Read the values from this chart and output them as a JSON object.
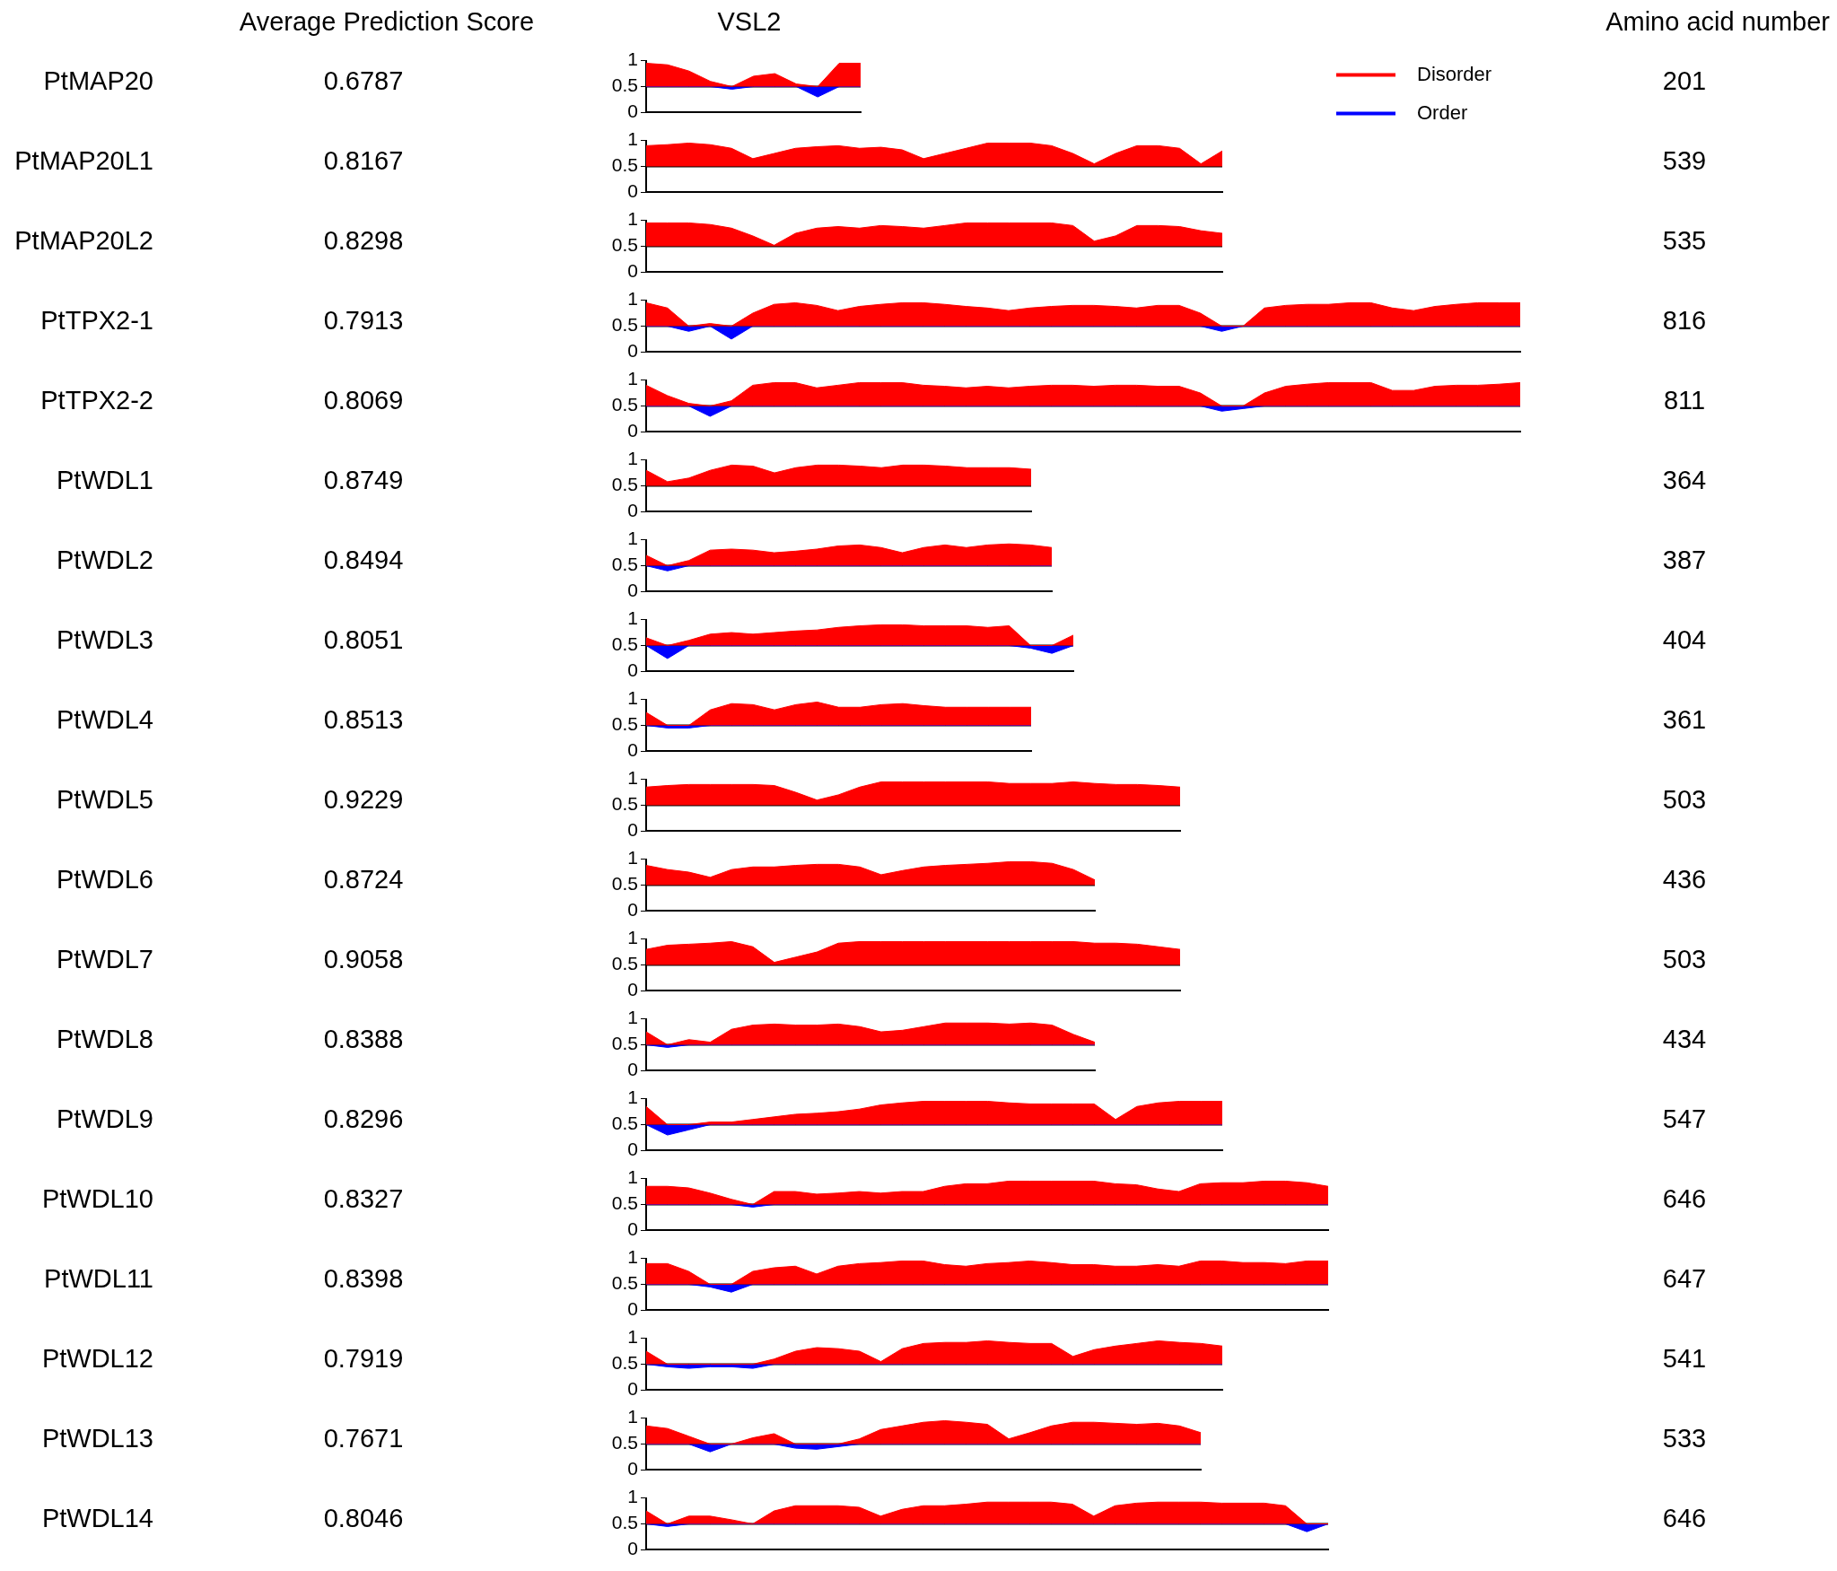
{
  "chart_data": [
    {
      "type": "other",
      "annotations": [
        "Average Prediction Score",
        "VSL2",
        "Amino acid number"
      ]
    },
    {
      "type": "area",
      "ylabel": "PtMAP20",
      "annotations": [
        "0.6787",
        "201"
      ],
      "legend": "right",
      "ylim": [
        0,
        1
      ],
      "yticks": [
        0,
        0.5,
        1
      ],
      "tick_labels": "y",
      "ref_lines": [
        {
          "axis": "y",
          "value": 0.5,
          "color": "#000000"
        }
      ],
      "categories": [
        null,
        null,
        null,
        null,
        null,
        null,
        null,
        null,
        null,
        null,
        null
      ],
      "series": [
        {
          "name": "Disorder",
          "color": "#ff0000",
          "values": [
            0.95,
            0.92,
            0.8,
            0.6,
            0.5,
            0.7,
            0.75,
            0.55,
            0.5,
            0.95,
            0.95
          ]
        },
        {
          "name": "Order",
          "color": "#0000ff",
          "values": [
            0.5,
            0.5,
            0.5,
            0.5,
            0.45,
            0.5,
            0.5,
            0.5,
            0.3,
            0.5,
            0.5
          ]
        }
      ]
    },
    {
      "type": "area",
      "ylabel": "PtMAP20L1",
      "annotations": [
        "0.8167",
        "539"
      ],
      "ylim": [
        0,
        1
      ],
      "yticks": [
        0,
        0.5,
        1
      ],
      "tick_labels": "y",
      "ref_lines": [
        {
          "axis": "y",
          "value": 0.5,
          "color": "#000000"
        }
      ],
      "categories": [
        null,
        null,
        null,
        null,
        null,
        null,
        null,
        null,
        null,
        null,
        null,
        null,
        null,
        null,
        null,
        null,
        null,
        null,
        null,
        null,
        null,
        null,
        null,
        null,
        null,
        null,
        null,
        null
      ],
      "series": [
        {
          "color": "#ff0000",
          "values": [
            0.9,
            0.92,
            0.95,
            0.92,
            0.85,
            0.65,
            0.75,
            0.85,
            0.88,
            0.9,
            0.85,
            0.87,
            0.82,
            0.65,
            0.75,
            0.85,
            0.95,
            0.95,
            0.95,
            0.9,
            0.75,
            0.55,
            0.75,
            0.9,
            0.9,
            0.85,
            0.55,
            0.8
          ]
        }
      ]
    },
    {
      "type": "area",
      "ylabel": "PtMAP20L2",
      "annotations": [
        "0.8298",
        "535"
      ],
      "ylim": [
        0,
        1
      ],
      "yticks": [
        0,
        0.5,
        1
      ],
      "tick_labels": "y",
      "ref_lines": [
        {
          "axis": "y",
          "value": 0.5,
          "color": "#000000"
        }
      ],
      "categories": [
        null,
        null,
        null,
        null,
        null,
        null,
        null,
        null,
        null,
        null,
        null,
        null,
        null,
        null,
        null,
        null,
        null,
        null,
        null,
        null,
        null,
        null,
        null,
        null,
        null,
        null,
        null,
        null
      ],
      "series": [
        {
          "color": "#ff0000",
          "values": [
            0.95,
            0.95,
            0.95,
            0.92,
            0.85,
            0.7,
            0.52,
            0.75,
            0.85,
            0.88,
            0.85,
            0.9,
            0.88,
            0.85,
            0.9,
            0.95,
            0.95,
            0.95,
            0.95,
            0.95,
            0.9,
            0.6,
            0.7,
            0.9,
            0.9,
            0.88,
            0.8,
            0.75
          ]
        }
      ]
    },
    {
      "type": "area",
      "ylabel": "PtTPX2-1",
      "annotations": [
        "0.7913",
        "816"
      ],
      "ylim": [
        0,
        1
      ],
      "yticks": [
        0,
        0.5,
        1
      ],
      "tick_labels": "y",
      "ref_lines": [
        {
          "axis": "y",
          "value": 0.5,
          "color": "#000000"
        }
      ],
      "categories": [
        null,
        null,
        null,
        null,
        null,
        null,
        null,
        null,
        null,
        null,
        null,
        null,
        null,
        null,
        null,
        null,
        null,
        null,
        null,
        null,
        null,
        null,
        null,
        null,
        null,
        null,
        null,
        null,
        null,
        null,
        null,
        null,
        null,
        null,
        null,
        null,
        null,
        null,
        null,
        null,
        null,
        null
      ],
      "series": [
        {
          "color": "#ff0000",
          "values": [
            0.95,
            0.85,
            0.5,
            0.55,
            0.5,
            0.75,
            0.92,
            0.95,
            0.9,
            0.8,
            0.88,
            0.92,
            0.95,
            0.95,
            0.92,
            0.88,
            0.85,
            0.8,
            0.85,
            0.88,
            0.9,
            0.9,
            0.88,
            0.85,
            0.9,
            0.9,
            0.75,
            0.5,
            0.5,
            0.85,
            0.9,
            0.92,
            0.92,
            0.95,
            0.95,
            0.85,
            0.8,
            0.88,
            0.92,
            0.95,
            0.95,
            0.95
          ]
        },
        {
          "color": "#0000ff",
          "values": [
            0.5,
            0.5,
            0.4,
            0.5,
            0.25,
            0.5,
            0.5,
            0.5,
            0.5,
            0.5,
            0.5,
            0.5,
            0.5,
            0.5,
            0.5,
            0.5,
            0.5,
            0.5,
            0.5,
            0.5,
            0.5,
            0.5,
            0.5,
            0.5,
            0.5,
            0.5,
            0.5,
            0.4,
            0.5,
            0.5,
            0.5,
            0.5,
            0.5,
            0.5,
            0.5,
            0.5,
            0.5,
            0.5,
            0.5,
            0.5,
            0.5,
            0.5
          ]
        }
      ]
    },
    {
      "type": "area",
      "ylabel": "PtTPX2-2",
      "annotations": [
        "0.8069",
        "811"
      ],
      "ylim": [
        0,
        1
      ],
      "yticks": [
        0,
        0.5,
        1
      ],
      "tick_labels": "y",
      "ref_lines": [
        {
          "axis": "y",
          "value": 0.5,
          "color": "#000000"
        }
      ],
      "categories": [
        null,
        null,
        null,
        null,
        null,
        null,
        null,
        null,
        null,
        null,
        null,
        null,
        null,
        null,
        null,
        null,
        null,
        null,
        null,
        null,
        null,
        null,
        null,
        null,
        null,
        null,
        null,
        null,
        null,
        null,
        null,
        null,
        null,
        null,
        null,
        null,
        null,
        null,
        null,
        null,
        null,
        null
      ],
      "series": [
        {
          "color": "#ff0000",
          "values": [
            0.9,
            0.7,
            0.55,
            0.5,
            0.6,
            0.9,
            0.95,
            0.95,
            0.85,
            0.9,
            0.95,
            0.95,
            0.95,
            0.9,
            0.88,
            0.85,
            0.88,
            0.85,
            0.88,
            0.9,
            0.9,
            0.88,
            0.9,
            0.9,
            0.88,
            0.88,
            0.75,
            0.5,
            0.5,
            0.75,
            0.88,
            0.92,
            0.95,
            0.95,
            0.95,
            0.8,
            0.8,
            0.88,
            0.9,
            0.9,
            0.92,
            0.95
          ]
        },
        {
          "color": "#0000ff",
          "values": [
            0.5,
            0.5,
            0.5,
            0.3,
            0.5,
            0.5,
            0.5,
            0.5,
            0.5,
            0.5,
            0.5,
            0.5,
            0.5,
            0.5,
            0.5,
            0.5,
            0.5,
            0.5,
            0.5,
            0.5,
            0.5,
            0.5,
            0.5,
            0.5,
            0.5,
            0.5,
            0.5,
            0.4,
            0.45,
            0.5,
            0.5,
            0.5,
            0.5,
            0.5,
            0.5,
            0.5,
            0.5,
            0.5,
            0.5,
            0.5,
            0.5,
            0.5
          ]
        }
      ]
    },
    {
      "type": "area",
      "ylabel": "PtWDL1",
      "annotations": [
        "0.8749",
        "364"
      ],
      "ylim": [
        0,
        1
      ],
      "yticks": [
        0,
        0.5,
        1
      ],
      "tick_labels": "y",
      "ref_lines": [
        {
          "axis": "y",
          "value": 0.5,
          "color": "#000000"
        }
      ],
      "categories": [
        null,
        null,
        null,
        null,
        null,
        null,
        null,
        null,
        null,
        null,
        null,
        null,
        null,
        null,
        null,
        null,
        null,
        null,
        null
      ],
      "series": [
        {
          "color": "#ff0000",
          "values": [
            0.8,
            0.58,
            0.65,
            0.8,
            0.9,
            0.88,
            0.75,
            0.85,
            0.9,
            0.9,
            0.88,
            0.85,
            0.9,
            0.9,
            0.88,
            0.85,
            0.85,
            0.85,
            0.82
          ]
        }
      ]
    },
    {
      "type": "area",
      "ylabel": "PtWDL2",
      "annotations": [
        "0.8494",
        "387"
      ],
      "ylim": [
        0,
        1
      ],
      "yticks": [
        0,
        0.5,
        1
      ],
      "tick_labels": "y",
      "ref_lines": [
        {
          "axis": "y",
          "value": 0.5,
          "color": "#000000"
        }
      ],
      "categories": [
        null,
        null,
        null,
        null,
        null,
        null,
        null,
        null,
        null,
        null,
        null,
        null,
        null,
        null,
        null,
        null,
        null,
        null,
        null,
        null
      ],
      "series": [
        {
          "color": "#ff0000",
          "values": [
            0.7,
            0.5,
            0.6,
            0.8,
            0.82,
            0.8,
            0.75,
            0.78,
            0.82,
            0.88,
            0.9,
            0.85,
            0.75,
            0.85,
            0.9,
            0.85,
            0.9,
            0.92,
            0.9,
            0.85
          ]
        },
        {
          "color": "#0000ff",
          "values": [
            0.5,
            0.4,
            0.5,
            0.5,
            0.5,
            0.5,
            0.5,
            0.5,
            0.5,
            0.5,
            0.5,
            0.5,
            0.5,
            0.5,
            0.5,
            0.5,
            0.5,
            0.5,
            0.5,
            0.5
          ]
        }
      ]
    },
    {
      "type": "area",
      "ylabel": "PtWDL3",
      "annotations": [
        "0.8051",
        "404"
      ],
      "ylim": [
        0,
        1
      ],
      "yticks": [
        0,
        0.5,
        1
      ],
      "tick_labels": "y",
      "ref_lines": [
        {
          "axis": "y",
          "value": 0.5,
          "color": "#000000"
        }
      ],
      "categories": [
        null,
        null,
        null,
        null,
        null,
        null,
        null,
        null,
        null,
        null,
        null,
        null,
        null,
        null,
        null,
        null,
        null,
        null,
        null,
        null,
        null
      ],
      "series": [
        {
          "color": "#ff0000",
          "values": [
            0.65,
            0.5,
            0.6,
            0.72,
            0.75,
            0.72,
            0.75,
            0.78,
            0.8,
            0.85,
            0.88,
            0.9,
            0.9,
            0.88,
            0.88,
            0.88,
            0.85,
            0.88,
            0.5,
            0.5,
            0.7
          ]
        },
        {
          "color": "#0000ff",
          "values": [
            0.5,
            0.25,
            0.5,
            0.5,
            0.5,
            0.5,
            0.5,
            0.5,
            0.5,
            0.5,
            0.5,
            0.5,
            0.5,
            0.5,
            0.5,
            0.5,
            0.5,
            0.5,
            0.45,
            0.35,
            0.5
          ]
        }
      ]
    },
    {
      "type": "area",
      "ylabel": "PtWDL4",
      "annotations": [
        "0.8513",
        "361"
      ],
      "ylim": [
        0,
        1
      ],
      "yticks": [
        0,
        0.5,
        1
      ],
      "tick_labels": "y",
      "ref_lines": [
        {
          "axis": "y",
          "value": 0.5,
          "color": "#000000"
        }
      ],
      "categories": [
        null,
        null,
        null,
        null,
        null,
        null,
        null,
        null,
        null,
        null,
        null,
        null,
        null,
        null,
        null,
        null,
        null,
        null,
        null
      ],
      "series": [
        {
          "color": "#ff0000",
          "values": [
            0.75,
            0.5,
            0.5,
            0.8,
            0.92,
            0.9,
            0.8,
            0.9,
            0.95,
            0.85,
            0.85,
            0.9,
            0.92,
            0.88,
            0.85,
            0.85,
            0.85,
            0.85,
            0.85
          ]
        },
        {
          "color": "#0000ff",
          "values": [
            0.5,
            0.45,
            0.45,
            0.5,
            0.5,
            0.5,
            0.5,
            0.5,
            0.5,
            0.5,
            0.5,
            0.5,
            0.5,
            0.5,
            0.5,
            0.5,
            0.5,
            0.5,
            0.5
          ]
        }
      ]
    },
    {
      "type": "area",
      "ylabel": "PtWDL5",
      "annotations": [
        "0.9229",
        "503"
      ],
      "ylim": [
        0,
        1
      ],
      "yticks": [
        0,
        0.5,
        1
      ],
      "tick_labels": "y",
      "ref_lines": [
        {
          "axis": "y",
          "value": 0.5,
          "color": "#000000"
        }
      ],
      "categories": [
        null,
        null,
        null,
        null,
        null,
        null,
        null,
        null,
        null,
        null,
        null,
        null,
        null,
        null,
        null,
        null,
        null,
        null,
        null,
        null,
        null,
        null,
        null,
        null,
        null,
        null
      ],
      "series": [
        {
          "color": "#ff0000",
          "values": [
            0.85,
            0.88,
            0.9,
            0.9,
            0.9,
            0.9,
            0.88,
            0.75,
            0.6,
            0.7,
            0.85,
            0.95,
            0.95,
            0.95,
            0.95,
            0.95,
            0.95,
            0.92,
            0.92,
            0.92,
            0.95,
            0.92,
            0.9,
            0.9,
            0.88,
            0.85
          ]
        }
      ]
    },
    {
      "type": "area",
      "ylabel": "PtWDL6",
      "annotations": [
        "0.8724",
        "436"
      ],
      "ylim": [
        0,
        1
      ],
      "yticks": [
        0,
        0.5,
        1
      ],
      "tick_labels": "y",
      "ref_lines": [
        {
          "axis": "y",
          "value": 0.5,
          "color": "#000000"
        }
      ],
      "categories": [
        null,
        null,
        null,
        null,
        null,
        null,
        null,
        null,
        null,
        null,
        null,
        null,
        null,
        null,
        null,
        null,
        null,
        null,
        null,
        null,
        null,
        null
      ],
      "series": [
        {
          "color": "#ff0000",
          "values": [
            0.88,
            0.8,
            0.75,
            0.65,
            0.8,
            0.85,
            0.85,
            0.88,
            0.9,
            0.9,
            0.85,
            0.7,
            0.78,
            0.85,
            0.88,
            0.9,
            0.92,
            0.95,
            0.95,
            0.92,
            0.8,
            0.6
          ]
        }
      ]
    },
    {
      "type": "area",
      "ylabel": "PtWDL7",
      "annotations": [
        "0.9058",
        "503"
      ],
      "ylim": [
        0,
        1
      ],
      "yticks": [
        0,
        0.5,
        1
      ],
      "tick_labels": "y",
      "ref_lines": [
        {
          "axis": "y",
          "value": 0.5,
          "color": "#000000"
        }
      ],
      "categories": [
        null,
        null,
        null,
        null,
        null,
        null,
        null,
        null,
        null,
        null,
        null,
        null,
        null,
        null,
        null,
        null,
        null,
        null,
        null,
        null,
        null,
        null,
        null,
        null,
        null,
        null
      ],
      "series": [
        {
          "color": "#ff0000",
          "values": [
            0.8,
            0.88,
            0.9,
            0.92,
            0.95,
            0.85,
            0.55,
            0.65,
            0.75,
            0.92,
            0.95,
            0.95,
            0.95,
            0.95,
            0.95,
            0.95,
            0.95,
            0.95,
            0.95,
            0.95,
            0.95,
            0.92,
            0.92,
            0.9,
            0.85,
            0.8
          ]
        }
      ]
    },
    {
      "type": "area",
      "ylabel": "PtWDL8",
      "annotations": [
        "0.8388",
        "434"
      ],
      "ylim": [
        0,
        1
      ],
      "yticks": [
        0,
        0.5,
        1
      ],
      "tick_labels": "y",
      "ref_lines": [
        {
          "axis": "y",
          "value": 0.5,
          "color": "#000000"
        }
      ],
      "categories": [
        null,
        null,
        null,
        null,
        null,
        null,
        null,
        null,
        null,
        null,
        null,
        null,
        null,
        null,
        null,
        null,
        null,
        null,
        null,
        null,
        null,
        null
      ],
      "series": [
        {
          "color": "#ff0000",
          "values": [
            0.75,
            0.5,
            0.6,
            0.55,
            0.8,
            0.88,
            0.9,
            0.88,
            0.88,
            0.9,
            0.85,
            0.75,
            0.78,
            0.85,
            0.92,
            0.92,
            0.92,
            0.9,
            0.92,
            0.88,
            0.7,
            0.55
          ]
        },
        {
          "color": "#0000ff",
          "values": [
            0.5,
            0.45,
            0.5,
            0.5,
            0.5,
            0.5,
            0.5,
            0.5,
            0.5,
            0.5,
            0.5,
            0.5,
            0.5,
            0.5,
            0.5,
            0.5,
            0.5,
            0.5,
            0.5,
            0.5,
            0.5,
            0.5
          ]
        }
      ]
    },
    {
      "type": "area",
      "ylabel": "PtWDL9",
      "annotations": [
        "0.8296",
        "547"
      ],
      "ylim": [
        0,
        1
      ],
      "yticks": [
        0,
        0.5,
        1
      ],
      "tick_labels": "y",
      "ref_lines": [
        {
          "axis": "y",
          "value": 0.5,
          "color": "#000000"
        }
      ],
      "categories": [
        null,
        null,
        null,
        null,
        null,
        null,
        null,
        null,
        null,
        null,
        null,
        null,
        null,
        null,
        null,
        null,
        null,
        null,
        null,
        null,
        null,
        null,
        null,
        null,
        null,
        null,
        null,
        null
      ],
      "series": [
        {
          "color": "#ff0000",
          "values": [
            0.85,
            0.5,
            0.5,
            0.55,
            0.55,
            0.6,
            0.65,
            0.7,
            0.72,
            0.75,
            0.8,
            0.88,
            0.92,
            0.95,
            0.95,
            0.95,
            0.95,
            0.92,
            0.9,
            0.9,
            0.9,
            0.9,
            0.6,
            0.85,
            0.92,
            0.95,
            0.95,
            0.95
          ]
        },
        {
          "color": "#0000ff",
          "values": [
            0.5,
            0.3,
            0.4,
            0.5,
            0.5,
            0.5,
            0.5,
            0.5,
            0.5,
            0.5,
            0.5,
            0.5,
            0.5,
            0.5,
            0.5,
            0.5,
            0.5,
            0.5,
            0.5,
            0.5,
            0.5,
            0.5,
            0.5,
            0.5,
            0.5,
            0.5,
            0.5,
            0.5
          ]
        }
      ]
    },
    {
      "type": "area",
      "ylabel": "PtWDL10",
      "annotations": [
        "0.8327",
        "646"
      ],
      "ylim": [
        0,
        1
      ],
      "yticks": [
        0,
        0.5,
        1
      ],
      "tick_labels": "y",
      "ref_lines": [
        {
          "axis": "y",
          "value": 0.5,
          "color": "#000000"
        }
      ],
      "categories": [
        null,
        null,
        null,
        null,
        null,
        null,
        null,
        null,
        null,
        null,
        null,
        null,
        null,
        null,
        null,
        null,
        null,
        null,
        null,
        null,
        null,
        null,
        null,
        null,
        null,
        null,
        null,
        null,
        null,
        null,
        null,
        null,
        null
      ],
      "series": [
        {
          "color": "#ff0000",
          "values": [
            0.85,
            0.85,
            0.82,
            0.72,
            0.6,
            0.5,
            0.75,
            0.75,
            0.7,
            0.72,
            0.75,
            0.72,
            0.75,
            0.75,
            0.85,
            0.9,
            0.9,
            0.95,
            0.95,
            0.95,
            0.95,
            0.95,
            0.9,
            0.88,
            0.8,
            0.75,
            0.9,
            0.92,
            0.92,
            0.95,
            0.95,
            0.92,
            0.85
          ]
        },
        {
          "color": "#0000ff",
          "values": [
            0.5,
            0.5,
            0.5,
            0.5,
            0.5,
            0.45,
            0.5,
            0.5,
            0.5,
            0.5,
            0.5,
            0.5,
            0.5,
            0.5,
            0.5,
            0.5,
            0.5,
            0.5,
            0.5,
            0.5,
            0.5,
            0.5,
            0.5,
            0.5,
            0.5,
            0.5,
            0.5,
            0.5,
            0.5,
            0.5,
            0.5,
            0.5,
            0.5
          ]
        }
      ]
    },
    {
      "type": "area",
      "ylabel": "PtWDL11",
      "annotations": [
        "0.8398",
        "647"
      ],
      "ylim": [
        0,
        1
      ],
      "yticks": [
        0,
        0.5,
        1
      ],
      "tick_labels": "y",
      "ref_lines": [
        {
          "axis": "y",
          "value": 0.5,
          "color": "#000000"
        }
      ],
      "categories": [
        null,
        null,
        null,
        null,
        null,
        null,
        null,
        null,
        null,
        null,
        null,
        null,
        null,
        null,
        null,
        null,
        null,
        null,
        null,
        null,
        null,
        null,
        null,
        null,
        null,
        null,
        null,
        null,
        null,
        null,
        null,
        null,
        null
      ],
      "series": [
        {
          "color": "#ff0000",
          "values": [
            0.9,
            0.9,
            0.75,
            0.5,
            0.5,
            0.75,
            0.82,
            0.85,
            0.7,
            0.85,
            0.9,
            0.92,
            0.95,
            0.95,
            0.88,
            0.85,
            0.9,
            0.92,
            0.95,
            0.92,
            0.88,
            0.88,
            0.85,
            0.85,
            0.88,
            0.85,
            0.95,
            0.95,
            0.92,
            0.92,
            0.9,
            0.95,
            0.95
          ]
        },
        {
          "color": "#0000ff",
          "values": [
            0.5,
            0.5,
            0.5,
            0.45,
            0.35,
            0.5,
            0.5,
            0.5,
            0.5,
            0.5,
            0.5,
            0.5,
            0.5,
            0.5,
            0.5,
            0.5,
            0.5,
            0.5,
            0.5,
            0.5,
            0.5,
            0.5,
            0.5,
            0.5,
            0.5,
            0.5,
            0.5,
            0.5,
            0.5,
            0.5,
            0.5,
            0.5,
            0.5
          ]
        }
      ]
    },
    {
      "type": "area",
      "ylabel": "PtWDL12",
      "annotations": [
        "0.7919",
        "541"
      ],
      "ylim": [
        0,
        1
      ],
      "yticks": [
        0,
        0.5,
        1
      ],
      "tick_labels": "y",
      "ref_lines": [
        {
          "axis": "y",
          "value": 0.5,
          "color": "#000000"
        }
      ],
      "categories": [
        null,
        null,
        null,
        null,
        null,
        null,
        null,
        null,
        null,
        null,
        null,
        null,
        null,
        null,
        null,
        null,
        null,
        null,
        null,
        null,
        null,
        null,
        null,
        null,
        null,
        null,
        null,
        null
      ],
      "series": [
        {
          "color": "#ff0000",
          "values": [
            0.75,
            0.5,
            0.5,
            0.5,
            0.5,
            0.5,
            0.6,
            0.75,
            0.82,
            0.8,
            0.75,
            0.55,
            0.8,
            0.9,
            0.92,
            0.92,
            0.95,
            0.92,
            0.9,
            0.9,
            0.65,
            0.78,
            0.85,
            0.9,
            0.95,
            0.92,
            0.9,
            0.85
          ]
        },
        {
          "color": "#0000ff",
          "values": [
            0.5,
            0.45,
            0.42,
            0.45,
            0.45,
            0.42,
            0.5,
            0.5,
            0.5,
            0.5,
            0.5,
            0.5,
            0.5,
            0.5,
            0.5,
            0.5,
            0.5,
            0.5,
            0.5,
            0.5,
            0.5,
            0.5,
            0.5,
            0.5,
            0.5,
            0.5,
            0.5,
            0.5
          ]
        }
      ]
    },
    {
      "type": "area",
      "ylabel": "PtWDL13",
      "annotations": [
        "0.7671",
        "533"
      ],
      "ylim": [
        0,
        1
      ],
      "yticks": [
        0,
        0.5,
        1
      ],
      "tick_labels": "y",
      "ref_lines": [
        {
          "axis": "y",
          "value": 0.5,
          "color": "#000000"
        }
      ],
      "categories": [
        null,
        null,
        null,
        null,
        null,
        null,
        null,
        null,
        null,
        null,
        null,
        null,
        null,
        null,
        null,
        null,
        null,
        null,
        null,
        null,
        null,
        null,
        null,
        null,
        null,
        null,
        null
      ],
      "series": [
        {
          "color": "#ff0000",
          "values": [
            0.85,
            0.8,
            0.65,
            0.5,
            0.5,
            0.62,
            0.7,
            0.5,
            0.5,
            0.5,
            0.6,
            0.78,
            0.85,
            0.92,
            0.95,
            0.92,
            0.88,
            0.6,
            0.72,
            0.85,
            0.92,
            0.92,
            0.9,
            0.88,
            0.9,
            0.85,
            0.72
          ]
        },
        {
          "color": "#0000ff",
          "values": [
            0.5,
            0.5,
            0.5,
            0.35,
            0.5,
            0.5,
            0.5,
            0.42,
            0.4,
            0.45,
            0.5,
            0.5,
            0.5,
            0.5,
            0.5,
            0.5,
            0.5,
            0.5,
            0.5,
            0.5,
            0.5,
            0.5,
            0.5,
            0.5,
            0.5,
            0.5,
            0.5
          ]
        }
      ]
    },
    {
      "type": "area",
      "ylabel": "PtWDL14",
      "annotations": [
        "0.8046",
        "646"
      ],
      "ylim": [
        0,
        1
      ],
      "yticks": [
        0,
        0.5,
        1
      ],
      "tick_labels": "y",
      "ref_lines": [
        {
          "axis": "y",
          "value": 0.5,
          "color": "#000000"
        }
      ],
      "categories": [
        null,
        null,
        null,
        null,
        null,
        null,
        null,
        null,
        null,
        null,
        null,
        null,
        null,
        null,
        null,
        null,
        null,
        null,
        null,
        null,
        null,
        null,
        null,
        null,
        null,
        null,
        null,
        null,
        null,
        null,
        null,
        null,
        null
      ],
      "series": [
        {
          "color": "#ff0000",
          "values": [
            0.75,
            0.5,
            0.65,
            0.65,
            0.58,
            0.5,
            0.75,
            0.85,
            0.85,
            0.85,
            0.82,
            0.65,
            0.78,
            0.85,
            0.85,
            0.88,
            0.92,
            0.92,
            0.92,
            0.92,
            0.88,
            0.65,
            0.85,
            0.9,
            0.92,
            0.92,
            0.92,
            0.9,
            0.9,
            0.9,
            0.85,
            0.5,
            0.5
          ]
        },
        {
          "color": "#0000ff",
          "values": [
            0.5,
            0.45,
            0.5,
            0.5,
            0.5,
            0.5,
            0.5,
            0.5,
            0.5,
            0.5,
            0.5,
            0.5,
            0.5,
            0.5,
            0.5,
            0.5,
            0.5,
            0.5,
            0.5,
            0.5,
            0.5,
            0.5,
            0.5,
            0.5,
            0.5,
            0.5,
            0.5,
            0.5,
            0.5,
            0.5,
            0.5,
            0.35,
            0.5
          ]
        }
      ]
    }
  ]
}
